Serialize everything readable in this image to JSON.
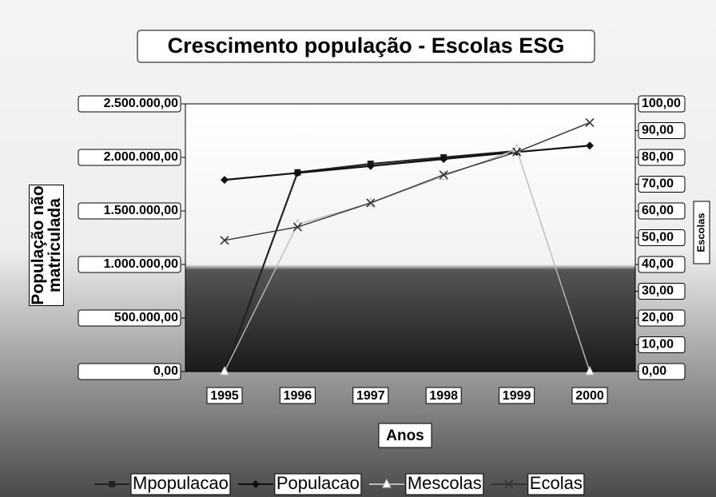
{
  "chart_data": {
    "type": "line",
    "title": "Crescimento população - Escolas   ESG",
    "xlabel": "Anos",
    "ylabel": "População não matriculada",
    "y2label": "Escolas",
    "categories": [
      "1995",
      "1996",
      "1997",
      "1998",
      "1999",
      "2000"
    ],
    "ylim": [
      0,
      2500000
    ],
    "yticks": [
      {
        "value": 0,
        "label": "0,00"
      },
      {
        "value": 500000,
        "label": "500.000,00"
      },
      {
        "value": 1000000,
        "label": "1.000.000,00"
      },
      {
        "value": 1500000,
        "label": "1.500.000,00"
      },
      {
        "value": 2000000,
        "label": "2.000.000,00"
      },
      {
        "value": 2500000,
        "label": "2.500.000,00"
      }
    ],
    "y2lim": [
      0,
      100
    ],
    "y2ticks": [
      {
        "value": 0,
        "label": "0,00"
      },
      {
        "value": 10,
        "label": "10,00"
      },
      {
        "value": 20,
        "label": "20,00"
      },
      {
        "value": 30,
        "label": "30,00"
      },
      {
        "value": 40,
        "label": "40,00"
      },
      {
        "value": 50,
        "label": "50,00"
      },
      {
        "value": 60,
        "label": "60,00"
      },
      {
        "value": 70,
        "label": "70,00"
      },
      {
        "value": 80,
        "label": "80,00"
      },
      {
        "value": 90,
        "label": "90,00"
      },
      {
        "value": 100,
        "label": "100,00"
      }
    ],
    "legend": "bottom",
    "series": [
      {
        "name": "Mpopulacao",
        "color": "#222222",
        "marker": "square",
        "values": [
          0,
          1860000,
          1940000,
          2000000,
          2060000,
          null
        ]
      },
      {
        "name": "Populacao",
        "color": "#111111",
        "marker": "diamond",
        "values": [
          1790000,
          1855000,
          1920000,
          1985000,
          2050000,
          2110000
        ]
      },
      {
        "name": "Mescolas",
        "color": "#bbbbbb",
        "marker": "triangle",
        "axis": "y2",
        "values": [
          0,
          55,
          63,
          73,
          83,
          0
        ]
      },
      {
        "name": "Ecolas",
        "color": "#333333",
        "marker": "x",
        "axis": "y2",
        "values": [
          49,
          54,
          63,
          73.5,
          82,
          93
        ]
      }
    ]
  }
}
